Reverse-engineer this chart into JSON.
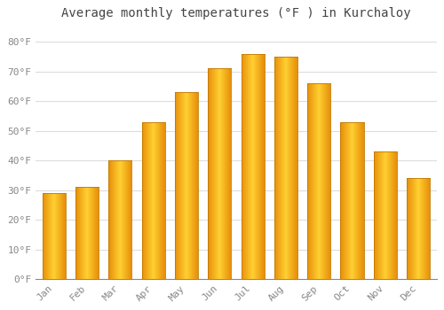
{
  "title": "Average monthly temperatures (°F ) in Kurchaloy",
  "categories": [
    "Jan",
    "Feb",
    "Mar",
    "Apr",
    "May",
    "Jun",
    "Jul",
    "Aug",
    "Sep",
    "Oct",
    "Nov",
    "Dec"
  ],
  "values": [
    29,
    31,
    40,
    53,
    63,
    71,
    76,
    75,
    66,
    53,
    43,
    34
  ],
  "bar_color_center": "#FFD966",
  "bar_color_edge": "#E8900A",
  "background_color": "#FFFFFF",
  "plot_bg_color": "#FFFFFF",
  "grid_color": "#DDDDDD",
  "ylim": [
    0,
    85
  ],
  "yticks": [
    0,
    10,
    20,
    30,
    40,
    50,
    60,
    70,
    80
  ],
  "ytick_labels": [
    "0°F",
    "10°F",
    "20°F",
    "30°F",
    "40°F",
    "50°F",
    "60°F",
    "70°F",
    "80°F"
  ],
  "title_fontsize": 10,
  "tick_fontsize": 8,
  "tick_color": "#888888",
  "font_family": "monospace",
  "bar_width": 0.7,
  "n_gradient_segments": 40
}
